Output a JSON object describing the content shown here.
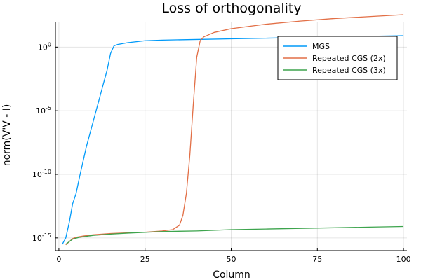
{
  "chart_data": {
    "type": "line",
    "title": "Loss of orthogonality",
    "xlabel": "Column",
    "ylabel": "norm(V'V - I)",
    "xlim": [
      -1,
      101
    ],
    "ylim_log10": [
      -16,
      2
    ],
    "y_scale": "log10",
    "grid": true,
    "legend_position": "top-right",
    "x_ticks": [
      0,
      25,
      50,
      75,
      100
    ],
    "x_tick_labels": [
      "0",
      "25",
      "50",
      "75",
      "100"
    ],
    "y_ticks_log10": [
      0,
      -5,
      -10,
      -15
    ],
    "y_tick_labels": [
      {
        "base": "10",
        "exp": "0"
      },
      {
        "base": "10",
        "exp": "-5"
      },
      {
        "base": "10",
        "exp": "-10"
      },
      {
        "base": "10",
        "exp": "-15"
      }
    ],
    "series": [
      {
        "name": "MGS",
        "color": "#009af9",
        "points_log10": [
          [
            1,
            -15.5
          ],
          [
            2,
            -15.0
          ],
          [
            3,
            -13.8
          ],
          [
            4,
            -12.3
          ],
          [
            5,
            -11.5
          ],
          [
            6,
            -10.2
          ],
          [
            7,
            -9.0
          ],
          [
            8,
            -7.8
          ],
          [
            9,
            -6.8
          ],
          [
            10,
            -5.8
          ],
          [
            11,
            -4.8
          ],
          [
            12,
            -3.8
          ],
          [
            13,
            -2.8
          ],
          [
            14,
            -1.8
          ],
          [
            15,
            -0.5
          ],
          [
            16,
            0.1
          ],
          [
            17,
            0.2
          ],
          [
            18,
            0.25
          ],
          [
            20,
            0.35
          ],
          [
            25,
            0.5
          ],
          [
            30,
            0.55
          ],
          [
            40,
            0.6
          ],
          [
            50,
            0.65
          ],
          [
            60,
            0.7
          ],
          [
            70,
            0.75
          ],
          [
            80,
            0.8
          ],
          [
            90,
            0.85
          ],
          [
            100,
            0.9
          ]
        ]
      },
      {
        "name": "Repeated CGS (2x)",
        "color": "#e26f46",
        "points_log10": [
          [
            2,
            -15.55
          ],
          [
            3,
            -15.3
          ],
          [
            4,
            -15.05
          ],
          [
            5,
            -14.95
          ],
          [
            7,
            -14.85
          ],
          [
            10,
            -14.75
          ],
          [
            15,
            -14.65
          ],
          [
            20,
            -14.6
          ],
          [
            25,
            -14.55
          ],
          [
            30,
            -14.45
          ],
          [
            33,
            -14.35
          ],
          [
            35,
            -14.0
          ],
          [
            36,
            -13.2
          ],
          [
            37,
            -11.5
          ],
          [
            38,
            -8.5
          ],
          [
            39,
            -4.5
          ],
          [
            40,
            -0.8
          ],
          [
            41,
            0.5
          ],
          [
            42,
            0.8
          ],
          [
            45,
            1.15
          ],
          [
            50,
            1.45
          ],
          [
            60,
            1.8
          ],
          [
            70,
            2.05
          ],
          [
            80,
            2.25
          ],
          [
            90,
            2.4
          ],
          [
            100,
            2.55
          ]
        ]
      },
      {
        "name": "Repeated CGS (3x)",
        "color": "#3da44d",
        "points_log10": [
          [
            2,
            -15.5
          ],
          [
            3,
            -15.3
          ],
          [
            4,
            -15.1
          ],
          [
            6,
            -14.95
          ],
          [
            10,
            -14.8
          ],
          [
            15,
            -14.7
          ],
          [
            20,
            -14.62
          ],
          [
            30,
            -14.5
          ],
          [
            40,
            -14.45
          ],
          [
            50,
            -14.35
          ],
          [
            60,
            -14.3
          ],
          [
            70,
            -14.25
          ],
          [
            80,
            -14.2
          ],
          [
            90,
            -14.15
          ],
          [
            100,
            -14.1
          ]
        ]
      }
    ]
  }
}
